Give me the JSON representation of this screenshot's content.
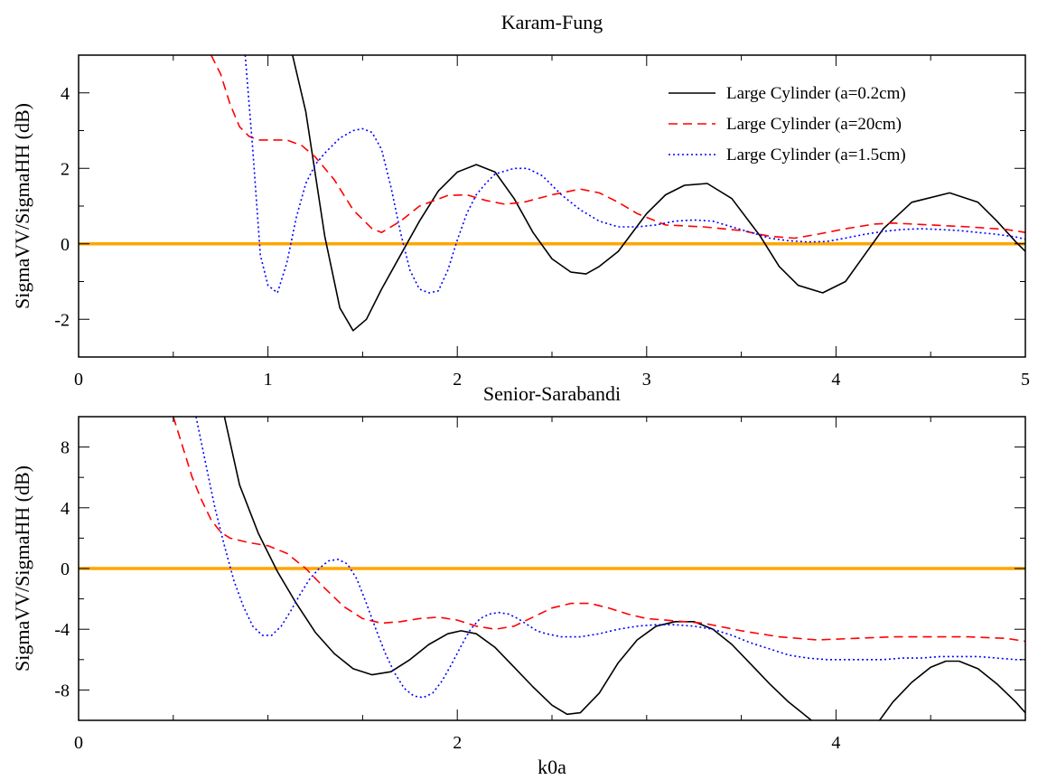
{
  "chart_data": [
    {
      "type": "line",
      "title": "Karam-Fung",
      "xlabel": "",
      "ylabel": "SigmaVV/SigmaHH (dB)",
      "xlim": [
        0,
        5
      ],
      "ylim": [
        -3,
        5
      ],
      "x_ticks": [
        0,
        1,
        2,
        3,
        4,
        5
      ],
      "x_tick_labels": [
        "0",
        "1",
        "2",
        "3",
        "4",
        "5"
      ],
      "x_minor_step": 0.5,
      "y_ticks": [
        -2,
        0,
        2,
        4
      ],
      "y_tick_labels": [
        "-2",
        "0",
        "2",
        "4"
      ],
      "y_minor_step": 1,
      "grid": false,
      "legend": "top-right",
      "reference_line": {
        "y": 0,
        "color": "#FFA500"
      },
      "series": [
        {
          "name": "Large Cylinder (a=0.2cm)",
          "color": "#000000",
          "dash": "solid",
          "x": [
            1.13,
            1.2,
            1.3,
            1.38,
            1.45,
            1.52,
            1.6,
            1.7,
            1.8,
            1.9,
            2.0,
            2.1,
            2.2,
            2.3,
            2.4,
            2.5,
            2.6,
            2.68,
            2.75,
            2.85,
            3.0,
            3.1,
            3.2,
            3.32,
            3.45,
            3.6,
            3.7,
            3.8,
            3.93,
            4.05,
            4.15,
            4.25,
            4.4,
            4.6,
            4.75,
            4.85,
            4.95,
            5.0
          ],
          "y": [
            5.0,
            3.5,
            0.2,
            -1.7,
            -2.3,
            -2.0,
            -1.2,
            -0.3,
            0.6,
            1.4,
            1.9,
            2.1,
            1.9,
            1.2,
            0.3,
            -0.4,
            -0.75,
            -0.8,
            -0.6,
            -0.2,
            0.8,
            1.3,
            1.55,
            1.6,
            1.2,
            0.2,
            -0.6,
            -1.1,
            -1.3,
            -1.0,
            -0.3,
            0.4,
            1.1,
            1.35,
            1.1,
            0.6,
            0.05,
            -0.2
          ]
        },
        {
          "name": "Large Cylinder (a=20cm)",
          "color": "#FF0000",
          "dash": "dashed",
          "x": [
            0.7,
            0.75,
            0.8,
            0.85,
            0.9,
            0.95,
            1.0,
            1.1,
            1.18,
            1.25,
            1.35,
            1.45,
            1.55,
            1.6,
            1.7,
            1.8,
            1.95,
            2.05,
            2.15,
            2.25,
            2.35,
            2.5,
            2.65,
            2.75,
            2.85,
            2.95,
            3.1,
            3.3,
            3.5,
            3.65,
            3.78,
            3.9,
            4.05,
            4.2,
            4.3,
            4.5,
            4.7,
            4.9,
            5.0
          ],
          "y": [
            5.0,
            4.5,
            3.7,
            3.1,
            2.85,
            2.75,
            2.75,
            2.75,
            2.6,
            2.3,
            1.7,
            0.9,
            0.4,
            0.3,
            0.6,
            1.0,
            1.28,
            1.3,
            1.15,
            1.05,
            1.1,
            1.3,
            1.45,
            1.35,
            1.1,
            0.8,
            0.5,
            0.45,
            0.35,
            0.2,
            0.15,
            0.25,
            0.4,
            0.52,
            0.55,
            0.5,
            0.45,
            0.38,
            0.3
          ]
        },
        {
          "name": "Large Cylinder (a=1.5cm)",
          "color": "#0000FF",
          "dash": "dotted",
          "x": [
            0.88,
            0.92,
            0.96,
            1.0,
            1.05,
            1.1,
            1.15,
            1.2,
            1.25,
            1.3,
            1.38,
            1.45,
            1.5,
            1.55,
            1.6,
            1.65,
            1.7,
            1.75,
            1.8,
            1.85,
            1.9,
            1.95,
            2.0,
            2.05,
            2.1,
            2.15,
            2.2,
            2.3,
            2.37,
            2.45,
            2.55,
            2.65,
            2.75,
            2.85,
            2.95,
            3.05,
            3.15,
            3.25,
            3.35,
            3.45,
            3.55,
            3.65,
            3.75,
            3.85,
            3.95,
            4.05,
            4.15,
            4.25,
            4.35,
            4.45,
            4.55,
            4.65,
            4.75,
            4.85,
            4.95,
            5.0
          ],
          "y": [
            5.0,
            2.5,
            -0.3,
            -1.1,
            -1.3,
            -0.5,
            0.7,
            1.6,
            2.1,
            2.4,
            2.8,
            3.0,
            3.05,
            2.95,
            2.5,
            1.5,
            0.3,
            -0.7,
            -1.2,
            -1.3,
            -1.25,
            -0.7,
            0.1,
            0.8,
            1.3,
            1.6,
            1.85,
            2.0,
            2.0,
            1.8,
            1.3,
            0.9,
            0.6,
            0.45,
            0.45,
            0.5,
            0.6,
            0.63,
            0.6,
            0.45,
            0.3,
            0.15,
            0.08,
            0.05,
            0.06,
            0.15,
            0.25,
            0.33,
            0.38,
            0.4,
            0.38,
            0.35,
            0.3,
            0.25,
            0.18,
            0.12
          ]
        }
      ]
    },
    {
      "type": "line",
      "title": "Senior-Sarabandi",
      "xlabel": "k0a",
      "ylabel": "SigmaVV/SigmaHH (dB)",
      "xlim": [
        0,
        5
      ],
      "ylim": [
        -10,
        10
      ],
      "x_ticks": [
        0,
        2,
        4
      ],
      "x_tick_labels": [
        "0",
        "2",
        "4"
      ],
      "x_minor_step": 0.5,
      "y_ticks": [
        -8,
        -4,
        0,
        4,
        8
      ],
      "y_tick_labels": [
        "-8",
        "-4",
        "0",
        "4",
        "8"
      ],
      "y_minor_step": 2,
      "grid": false,
      "reference_line": {
        "y": 0,
        "color": "#FFA500"
      },
      "series": [
        {
          "name": "Large Cylinder (a=0.2cm)",
          "color": "#000000",
          "dash": "solid",
          "x": [
            0.77,
            0.85,
            0.95,
            1.05,
            1.15,
            1.25,
            1.35,
            1.45,
            1.55,
            1.65,
            1.75,
            1.85,
            1.95,
            2.02,
            2.1,
            2.2,
            2.3,
            2.4,
            2.5,
            2.58,
            2.65,
            2.75,
            2.85,
            2.95,
            3.05,
            3.15,
            3.25,
            3.35,
            3.45,
            3.55,
            3.65,
            3.75,
            3.85,
            3.87
          ],
          "y": [
            10.0,
            5.5,
            2.3,
            -0.2,
            -2.3,
            -4.2,
            -5.6,
            -6.6,
            -7.0,
            -6.8,
            -6.0,
            -5.0,
            -4.3,
            -4.1,
            -4.3,
            -5.2,
            -6.5,
            -7.8,
            -9.0,
            -9.6,
            -9.5,
            -8.2,
            -6.2,
            -4.7,
            -3.8,
            -3.5,
            -3.5,
            -4.0,
            -5.0,
            -6.3,
            -7.6,
            -8.8,
            -9.8,
            -10.0
          ],
          "x2": [
            4.23,
            4.3,
            4.4,
            4.5,
            4.58,
            4.65,
            4.75,
            4.85,
            4.95,
            5.0
          ],
          "y2": [
            -10.0,
            -8.8,
            -7.5,
            -6.5,
            -6.1,
            -6.1,
            -6.6,
            -7.6,
            -8.8,
            -9.5
          ]
        },
        {
          "name": "Large Cylinder (a=20cm)",
          "color": "#FF0000",
          "dash": "dashed",
          "x": [
            0.5,
            0.55,
            0.6,
            0.65,
            0.7,
            0.75,
            0.8,
            0.9,
            1.0,
            1.1,
            1.2,
            1.3,
            1.4,
            1.5,
            1.6,
            1.7,
            1.8,
            1.9,
            2.0,
            2.1,
            2.2,
            2.3,
            2.4,
            2.5,
            2.6,
            2.7,
            2.8,
            2.9,
            3.0,
            3.1,
            3.3,
            3.5,
            3.7,
            3.9,
            4.1,
            4.3,
            4.5,
            4.7,
            4.9,
            5.0
          ],
          "y": [
            10.0,
            8.0,
            6.0,
            4.5,
            3.2,
            2.4,
            2.0,
            1.7,
            1.5,
            1.0,
            0.0,
            -1.3,
            -2.5,
            -3.3,
            -3.6,
            -3.5,
            -3.3,
            -3.2,
            -3.4,
            -3.8,
            -4.0,
            -3.8,
            -3.2,
            -2.6,
            -2.3,
            -2.3,
            -2.6,
            -3.0,
            -3.3,
            -3.4,
            -3.6,
            -4.1,
            -4.5,
            -4.7,
            -4.6,
            -4.5,
            -4.5,
            -4.5,
            -4.6,
            -4.8
          ]
        },
        {
          "name": "Large Cylinder (a=1.5cm)",
          "color": "#0000FF",
          "dash": "dotted",
          "x": [
            0.62,
            0.67,
            0.72,
            0.77,
            0.82,
            0.87,
            0.92,
            0.97,
            1.02,
            1.07,
            1.12,
            1.17,
            1.22,
            1.27,
            1.32,
            1.37,
            1.42,
            1.47,
            1.52,
            1.57,
            1.62,
            1.67,
            1.72,
            1.77,
            1.82,
            1.87,
            1.92,
            1.97,
            2.02,
            2.07,
            2.12,
            2.17,
            2.22,
            2.27,
            2.32,
            2.37,
            2.42,
            2.47,
            2.55,
            2.65,
            2.75,
            2.85,
            2.95,
            3.05,
            3.15,
            3.25,
            3.35,
            3.45,
            3.55,
            3.65,
            3.75,
            3.85,
            3.95,
            4.05,
            4.15,
            4.25,
            4.35,
            4.45,
            4.55,
            4.65,
            4.75,
            4.85,
            4.95,
            5.0
          ],
          "y": [
            10.0,
            7.0,
            4.0,
            1.5,
            -0.8,
            -2.5,
            -3.8,
            -4.4,
            -4.4,
            -3.8,
            -2.8,
            -1.7,
            -0.7,
            0.0,
            0.5,
            0.6,
            0.3,
            -0.7,
            -2.3,
            -4.0,
            -5.6,
            -6.9,
            -7.9,
            -8.4,
            -8.5,
            -8.2,
            -7.4,
            -6.3,
            -5.1,
            -4.0,
            -3.3,
            -3.0,
            -2.9,
            -3.0,
            -3.3,
            -3.7,
            -4.1,
            -4.3,
            -4.5,
            -4.5,
            -4.3,
            -4.0,
            -3.8,
            -3.7,
            -3.7,
            -3.8,
            -4.0,
            -4.4,
            -4.9,
            -5.3,
            -5.7,
            -5.9,
            -6.0,
            -6.0,
            -6.0,
            -6.0,
            -5.9,
            -5.9,
            -5.8,
            -5.8,
            -5.8,
            -5.9,
            -6.0,
            -6.0
          ]
        }
      ]
    }
  ]
}
